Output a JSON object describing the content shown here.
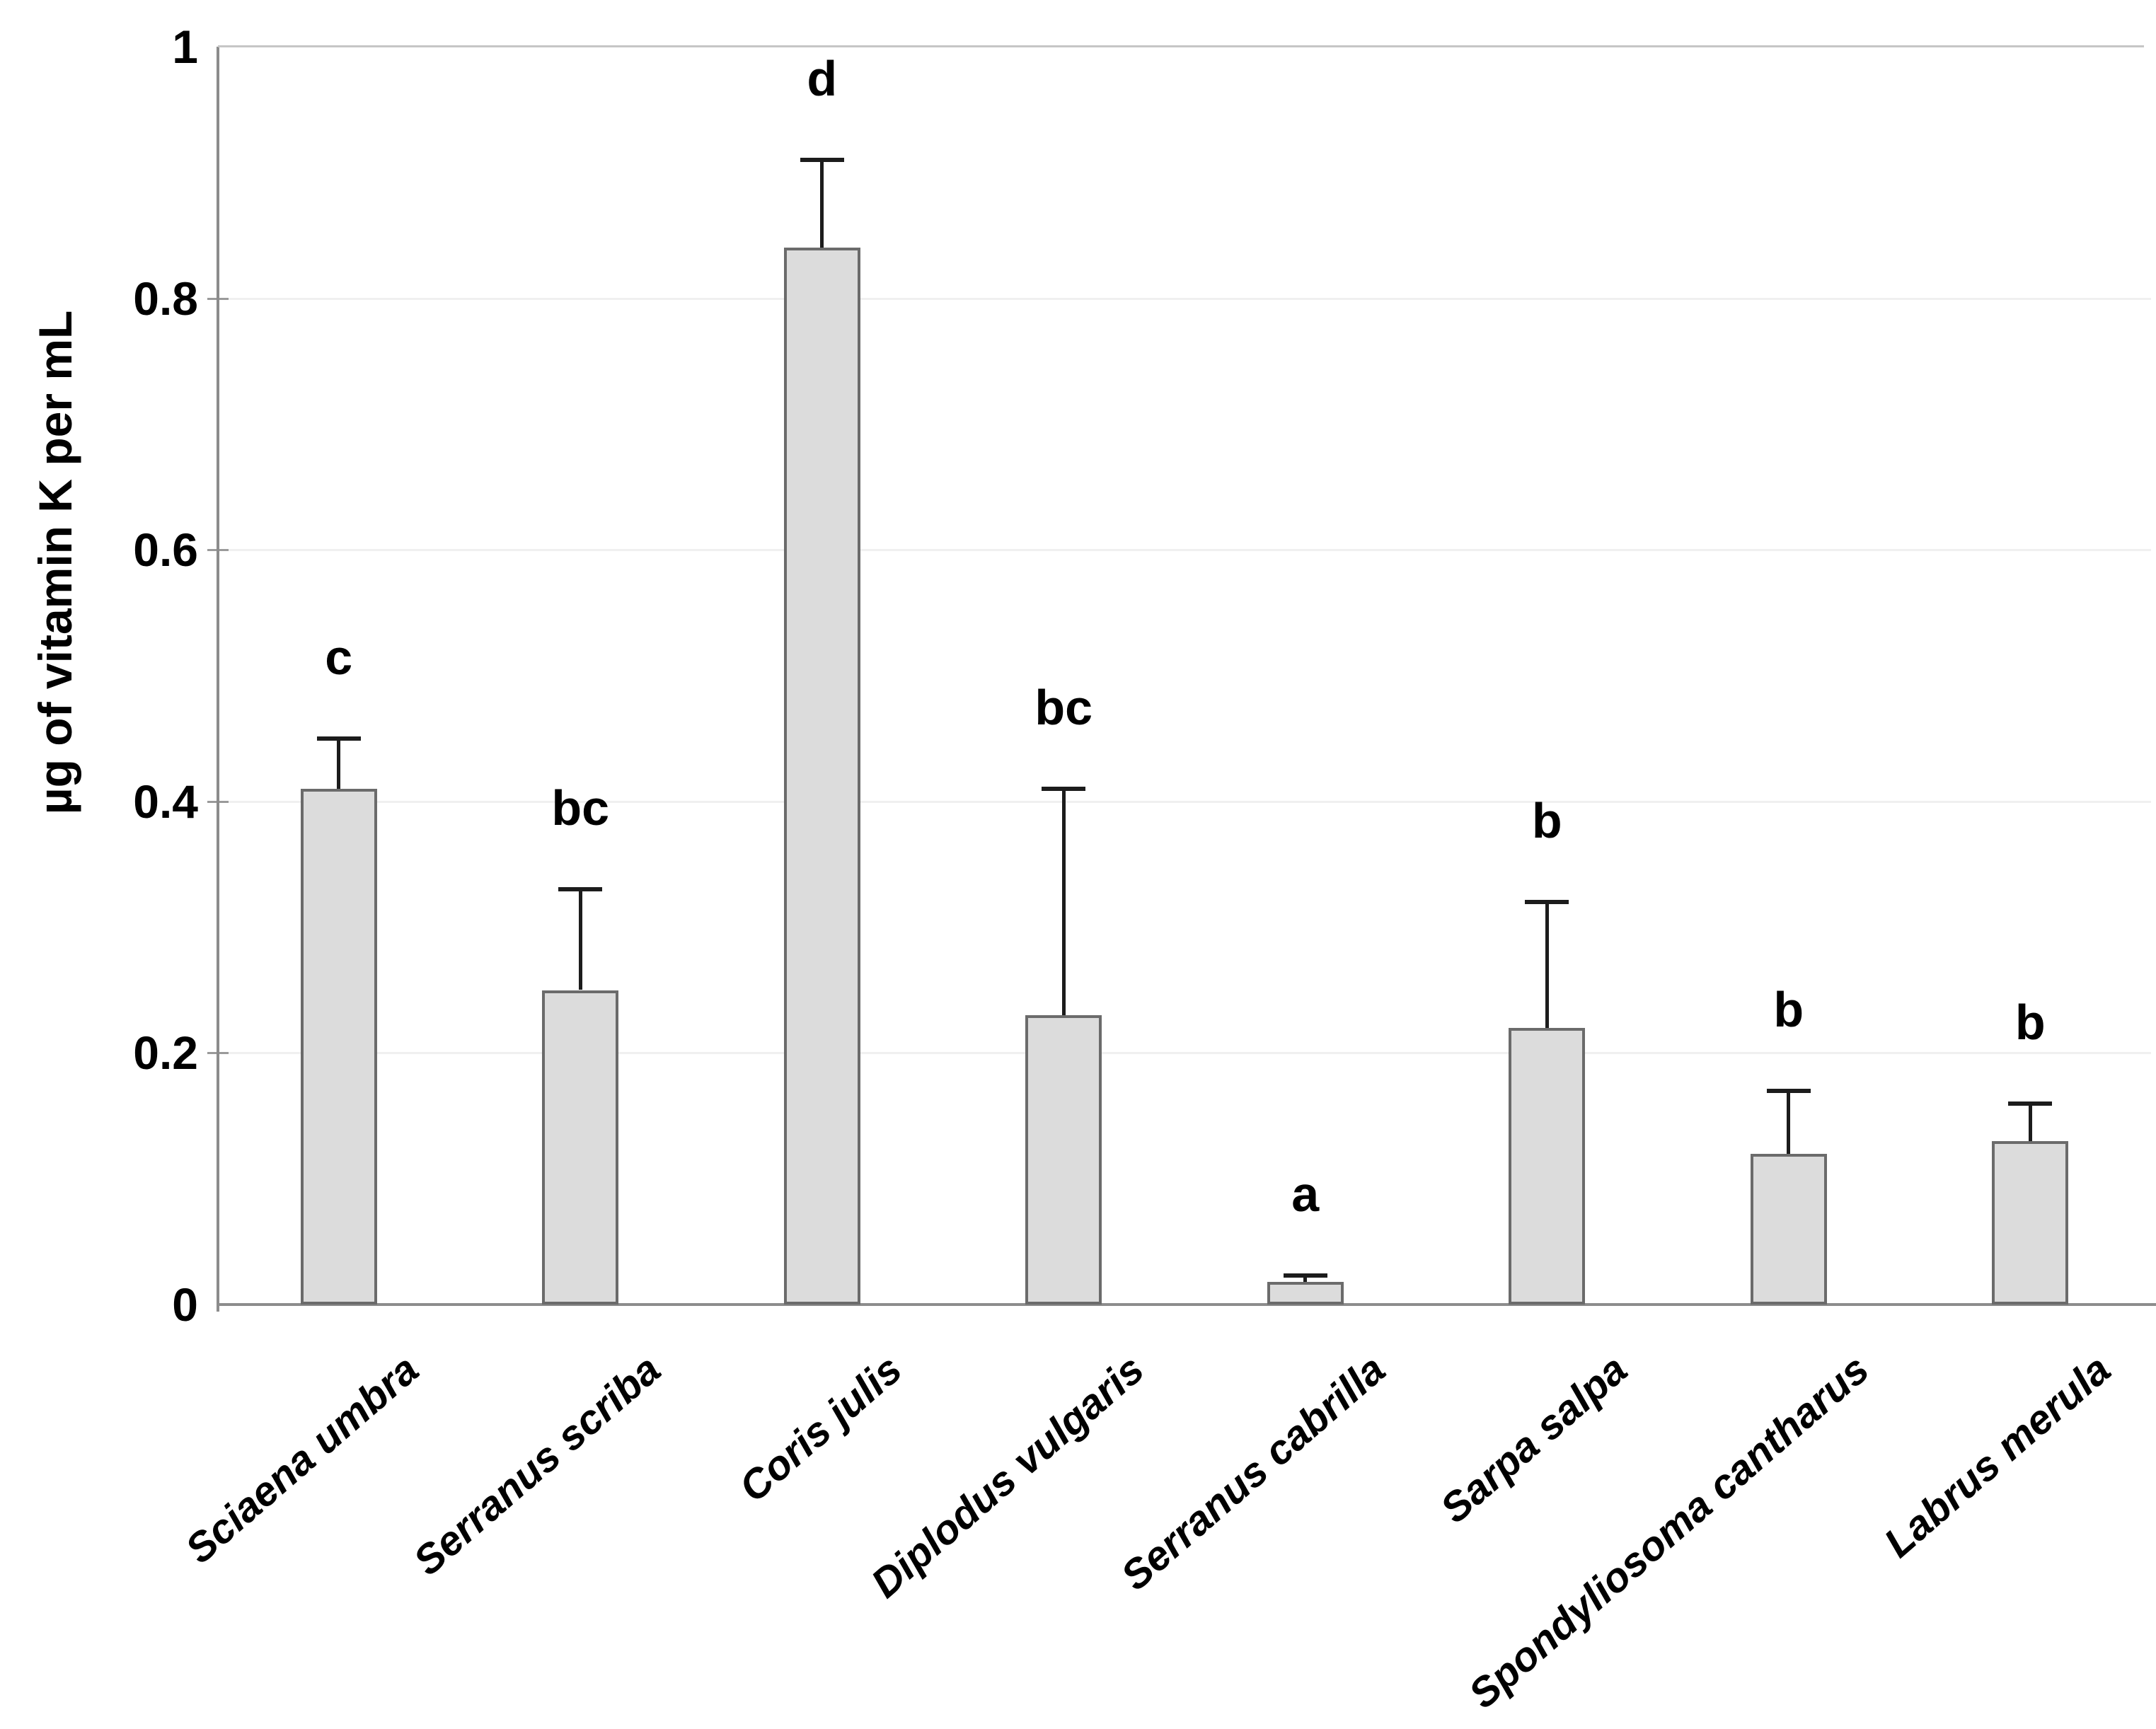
{
  "chart_data": {
    "type": "bar",
    "title": "",
    "ylabel": "µg of vitamin K per mL",
    "xlabel": "",
    "ylim": [
      0,
      1
    ],
    "yticks": [
      0,
      0.2,
      0.4,
      0.6,
      0.8,
      1
    ],
    "ytick_labels": [
      "0",
      "0.2",
      "0.4",
      "0.6",
      "0.8",
      "1"
    ],
    "grid": "very-faint-horizontal",
    "legend": "none",
    "bar_color": "#dcdcdc",
    "bar_border_color": "#6b6b6b",
    "error_bar_color": "#1c1c1c",
    "axis_color": "#8c8c8c",
    "categories": [
      "Sciaena umbra",
      "Serranus scriba",
      "Coris julis",
      "Diplodus vulgaris",
      "Serranus cabrilla",
      "Sarpa salpa",
      "Spondyliosoma cantharus",
      "Labrus merula"
    ],
    "values": [
      0.41,
      0.25,
      0.84,
      0.23,
      0.018,
      0.22,
      0.12,
      0.13
    ],
    "error_plus": [
      0.04,
      0.08,
      0.07,
      0.18,
      0.005,
      0.1,
      0.05,
      0.03
    ],
    "significance_letters": [
      "c",
      "bc",
      "d",
      "bc",
      "a",
      "b",
      "b",
      "b"
    ]
  }
}
